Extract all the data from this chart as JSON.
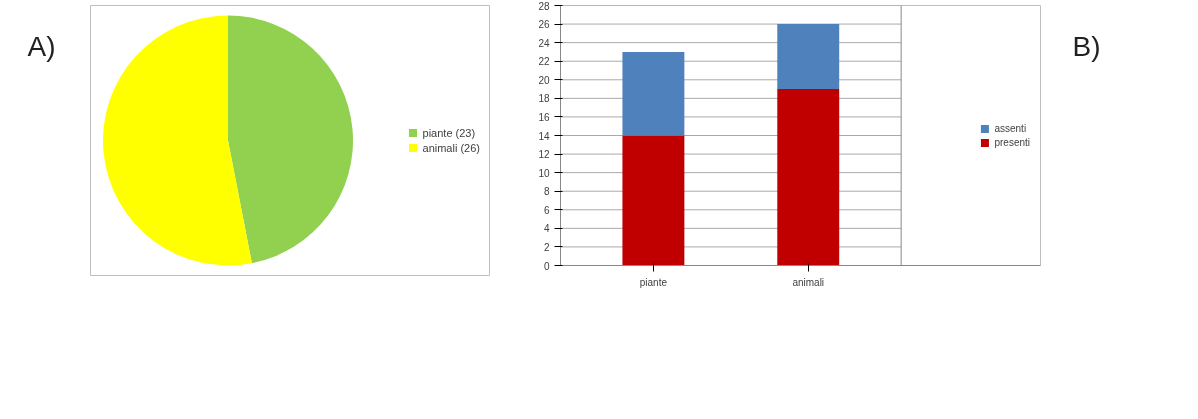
{
  "chart_data": [
    {
      "type": "pie",
      "categories": [
        "piante (23)",
        "animali (26)"
      ],
      "values": [
        23,
        26
      ],
      "colors": [
        "#92d050",
        "#ffff00"
      ],
      "legend": "right",
      "annotations": [
        "A)"
      ]
    },
    {
      "type": "bar",
      "stacked": true,
      "categories": [
        "piante",
        "animali"
      ],
      "series": [
        {
          "name": "presenti",
          "color": "#c00000",
          "values": [
            14,
            19
          ]
        },
        {
          "name": "assenti",
          "color": "#4f81bd",
          "values": [
            9,
            7
          ]
        }
      ],
      "ylim": [
        0,
        28
      ],
      "yticks": [
        0,
        2,
        4,
        6,
        8,
        10,
        12,
        14,
        16,
        18,
        20,
        22,
        24,
        26,
        28
      ],
      "grid": "y",
      "legend": "right",
      "annotations": [
        "B)"
      ]
    }
  ]
}
